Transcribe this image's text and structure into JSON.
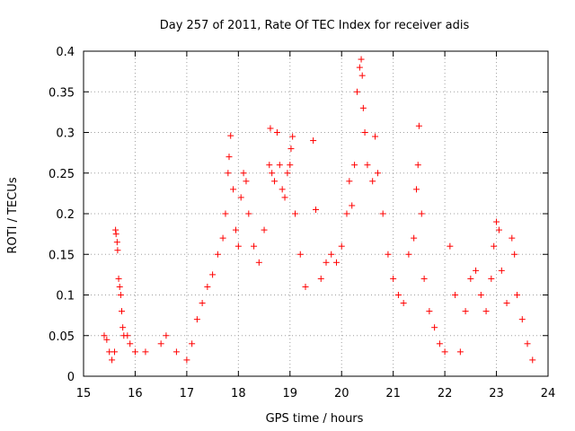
{
  "chart_data": {
    "type": "scatter",
    "title": "Day 257 of 2011, Rate Of TEC Index for receiver adis",
    "xlabel": "GPS time / hours",
    "ylabel": "ROTI / TECUs",
    "xlim": [
      15,
      24
    ],
    "ylim": [
      0,
      0.4
    ],
    "xticks": [
      "15",
      "16",
      "17",
      "18",
      "19",
      "20",
      "21",
      "22",
      "23",
      "24"
    ],
    "yticks": [
      "0",
      "0.05",
      "0.1",
      "0.15",
      "0.2",
      "0.25",
      "0.3",
      "0.35",
      "0.4"
    ],
    "grid": true,
    "marker": "+",
    "color": "#ff0000",
    "series": [
      {
        "name": "ROTI",
        "points": [
          [
            15.4,
            0.05
          ],
          [
            15.45,
            0.045
          ],
          [
            15.5,
            0.03
          ],
          [
            15.55,
            0.02
          ],
          [
            15.6,
            0.03
          ],
          [
            15.62,
            0.18
          ],
          [
            15.63,
            0.175
          ],
          [
            15.65,
            0.165
          ],
          [
            15.66,
            0.155
          ],
          [
            15.68,
            0.12
          ],
          [
            15.7,
            0.11
          ],
          [
            15.72,
            0.1
          ],
          [
            15.74,
            0.08
          ],
          [
            15.76,
            0.06
          ],
          [
            15.78,
            0.05
          ],
          [
            15.85,
            0.05
          ],
          [
            15.9,
            0.04
          ],
          [
            16.0,
            0.03
          ],
          [
            16.2,
            0.03
          ],
          [
            16.5,
            0.04
          ],
          [
            16.6,
            0.05
          ],
          [
            16.8,
            0.03
          ],
          [
            17.0,
            0.02
          ],
          [
            17.1,
            0.04
          ],
          [
            17.2,
            0.07
          ],
          [
            17.3,
            0.09
          ],
          [
            17.4,
            0.11
          ],
          [
            17.5,
            0.125
          ],
          [
            17.6,
            0.15
          ],
          [
            17.7,
            0.17
          ],
          [
            17.75,
            0.2
          ],
          [
            17.8,
            0.25
          ],
          [
            17.82,
            0.27
          ],
          [
            17.85,
            0.296
          ],
          [
            17.9,
            0.23
          ],
          [
            17.95,
            0.18
          ],
          [
            18.0,
            0.16
          ],
          [
            18.05,
            0.22
          ],
          [
            18.1,
            0.25
          ],
          [
            18.15,
            0.24
          ],
          [
            18.2,
            0.2
          ],
          [
            18.3,
            0.16
          ],
          [
            18.4,
            0.14
          ],
          [
            18.5,
            0.18
          ],
          [
            18.6,
            0.26
          ],
          [
            18.62,
            0.305
          ],
          [
            18.65,
            0.25
          ],
          [
            18.7,
            0.24
          ],
          [
            18.75,
            0.3
          ],
          [
            18.8,
            0.26
          ],
          [
            18.85,
            0.23
          ],
          [
            18.9,
            0.22
          ],
          [
            18.95,
            0.25
          ],
          [
            19.0,
            0.26
          ],
          [
            19.02,
            0.28
          ],
          [
            19.05,
            0.295
          ],
          [
            19.1,
            0.2
          ],
          [
            19.2,
            0.15
          ],
          [
            19.3,
            0.11
          ],
          [
            19.45,
            0.29
          ],
          [
            19.5,
            0.205
          ],
          [
            19.6,
            0.12
          ],
          [
            19.7,
            0.14
          ],
          [
            19.8,
            0.15
          ],
          [
            19.9,
            0.14
          ],
          [
            20.0,
            0.16
          ],
          [
            20.1,
            0.2
          ],
          [
            20.15,
            0.24
          ],
          [
            20.2,
            0.21
          ],
          [
            20.25,
            0.26
          ],
          [
            20.3,
            0.35
          ],
          [
            20.35,
            0.38
          ],
          [
            20.38,
            0.39
          ],
          [
            20.4,
            0.37
          ],
          [
            20.42,
            0.33
          ],
          [
            20.45,
            0.3
          ],
          [
            20.5,
            0.26
          ],
          [
            20.6,
            0.24
          ],
          [
            20.65,
            0.295
          ],
          [
            20.7,
            0.25
          ],
          [
            20.8,
            0.2
          ],
          [
            20.9,
            0.15
          ],
          [
            21.0,
            0.12
          ],
          [
            21.1,
            0.1
          ],
          [
            21.2,
            0.09
          ],
          [
            21.3,
            0.15
          ],
          [
            21.4,
            0.17
          ],
          [
            21.45,
            0.23
          ],
          [
            21.48,
            0.26
          ],
          [
            21.5,
            0.308
          ],
          [
            21.55,
            0.2
          ],
          [
            21.6,
            0.12
          ],
          [
            21.7,
            0.08
          ],
          [
            21.8,
            0.06
          ],
          [
            21.9,
            0.04
          ],
          [
            22.0,
            0.03
          ],
          [
            22.1,
            0.16
          ],
          [
            22.2,
            0.1
          ],
          [
            22.3,
            0.03
          ],
          [
            22.4,
            0.08
          ],
          [
            22.5,
            0.12
          ],
          [
            22.6,
            0.13
          ],
          [
            22.7,
            0.1
          ],
          [
            22.8,
            0.08
          ],
          [
            22.9,
            0.12
          ],
          [
            22.95,
            0.16
          ],
          [
            23.0,
            0.19
          ],
          [
            23.05,
            0.18
          ],
          [
            23.1,
            0.13
          ],
          [
            23.2,
            0.09
          ],
          [
            23.3,
            0.17
          ],
          [
            23.35,
            0.15
          ],
          [
            23.4,
            0.1
          ],
          [
            23.5,
            0.07
          ],
          [
            23.6,
            0.04
          ],
          [
            23.7,
            0.02
          ]
        ]
      }
    ]
  }
}
